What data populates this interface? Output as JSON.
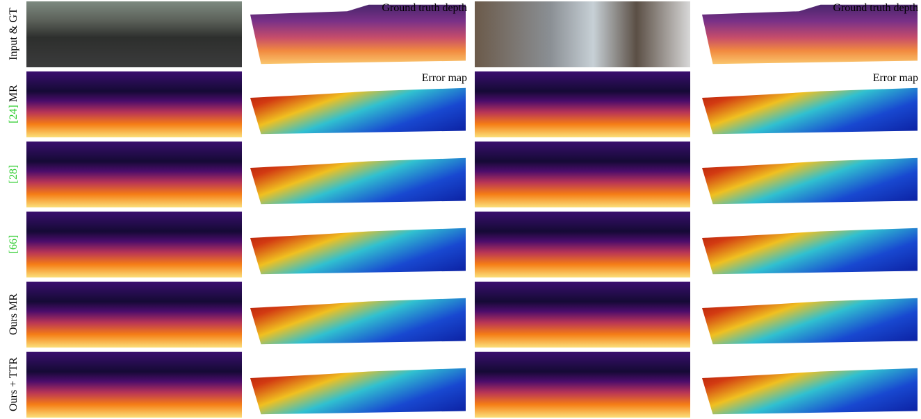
{
  "figure": {
    "rows": [
      {
        "text": "Input & GT"
      },
      {
        "ref": "[24]",
        "text": "MR"
      },
      {
        "ref": "[28]"
      },
      {
        "ref": "[66]"
      },
      {
        "text": "Ours MR"
      },
      {
        "text": "Ours + TTR"
      }
    ],
    "groups": [
      {
        "gt_caption": "Ground truth depth",
        "error_caption": "Error map"
      },
      {
        "gt_caption": "Ground truth depth",
        "error_caption": "Error map"
      }
    ]
  }
}
